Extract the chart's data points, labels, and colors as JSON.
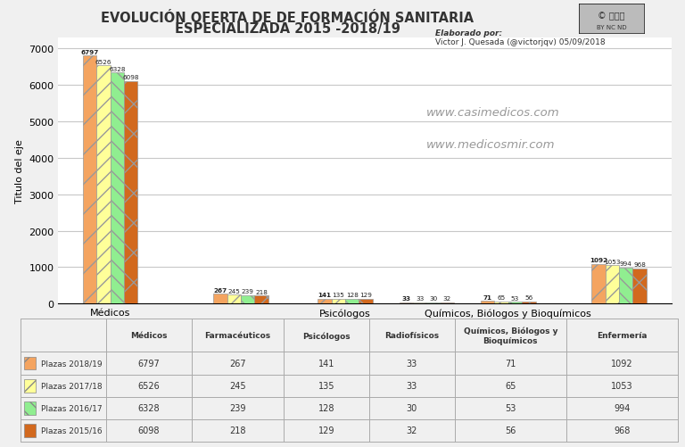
{
  "title_line1": "EVOLUCIÓN OFERTA DE DE FORMACIÓN SANITARIA",
  "title_line2": "ESPECIALIZADA 2015 -2018/19",
  "ylabel": "Titulo del eje",
  "elaborado_bold": "Elaborado por:",
  "elaborado_normal": "Victor J. Quesada (@victorjqv) 05/09/2018",
  "watermark1": "www.casimedicos.com",
  "watermark2": "www.medicosmir.com",
  "categories": [
    "Médicos",
    "Farmacéuticos",
    "Psicólogos",
    "Radiofísicos",
    "Químicos, Biólogos y Bioquímicos",
    "Enfermería"
  ],
  "x_labels": [
    "Médicos",
    "Psicólogos",
    "Químicos, Biólogos y Bioquímicos"
  ],
  "series": [
    {
      "label": "Plazas 2018/19",
      "values": [
        6797,
        267,
        141,
        33,
        71,
        1092
      ]
    },
    {
      "label": "Plazas 2017/18",
      "values": [
        6526,
        245,
        135,
        33,
        65,
        1053
      ]
    },
    {
      "label": "Plazas 2016/17",
      "values": [
        6328,
        239,
        128,
        30,
        53,
        994
      ]
    },
    {
      "label": "Plazas 2015/16",
      "values": [
        6098,
        218,
        129,
        32,
        56,
        968
      ]
    }
  ],
  "colors": [
    "#F4A460",
    "#FFFF99",
    "#90EE90",
    "#D2691E"
  ],
  "hatches": [
    "/",
    "//",
    "\\\\",
    "x"
  ],
  "ylim": [
    0,
    7300
  ],
  "yticks": [
    0,
    1000,
    2000,
    3000,
    4000,
    5000,
    6000,
    7000
  ],
  "bg_color": "#F0F0F0",
  "plot_bg_color": "#FFFFFF",
  "grid_color": "#C8C8C8",
  "col_headers": [
    "Médicos",
    "Farmacéuticos",
    "Psicólogos",
    "Radiofísicos",
    "Químicos, Biólogos y\nBioquímicos",
    "Enfermería"
  ]
}
